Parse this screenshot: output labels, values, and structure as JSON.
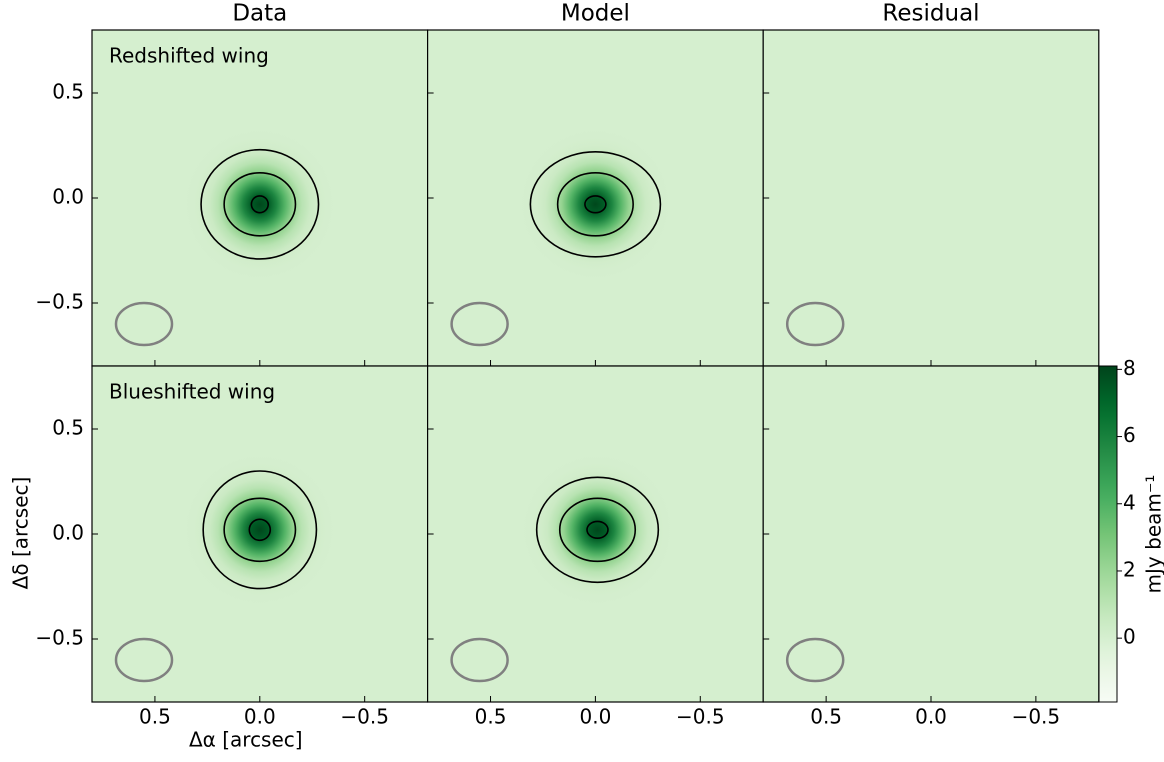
{
  "chart_data": {
    "type": "image-grid",
    "columns": [
      "Data",
      "Model",
      "Residual"
    ],
    "rows": [
      "Redshifted wing",
      "Blueshifted wing"
    ],
    "xlabel": "Δα [arcsec]",
    "ylabel": "Δδ [arcsec]",
    "xlim": [
      0.8,
      -0.8
    ],
    "ylim": [
      -0.8,
      0.8
    ],
    "xticks": [
      {
        "value": 0.5,
        "label": "0.5"
      },
      {
        "value": 0,
        "label": "0.0"
      },
      {
        "value": -0.5,
        "label": "−0.5"
      }
    ],
    "yticks": [
      {
        "value": 0.5,
        "label": "0.5"
      },
      {
        "value": 0,
        "label": "0.0"
      },
      {
        "value": -0.5,
        "label": "−0.5"
      }
    ],
    "colorbar": {
      "label": "mJy beam⁻¹",
      "clim": [
        -1.9,
        8.1
      ],
      "ticks": [
        0,
        2,
        4,
        6,
        8
      ],
      "colormap": "Greens"
    },
    "panels": [
      [
        {
          "peak": 8,
          "center": [
            0.0,
            -0.03
          ],
          "contours": [
            {
              "rx": 0.04,
              "ry": 0.04
            },
            {
              "rx": 0.17,
              "ry": 0.15
            },
            {
              "rx": 0.28,
              "ry": 0.26
            }
          ]
        },
        {
          "peak": 8,
          "center": [
            0.0,
            -0.03
          ],
          "contours": [
            {
              "rx": 0.05,
              "ry": 0.04
            },
            {
              "rx": 0.18,
              "ry": 0.15
            },
            {
              "rx": 0.31,
              "ry": 0.25
            }
          ]
        },
        {
          "peak": 0,
          "center": [
            0.0,
            0.0
          ],
          "contours": []
        }
      ],
      [
        {
          "peak": 8,
          "center": [
            0.0,
            0.02
          ],
          "contours": [
            {
              "rx": 0.05,
              "ry": 0.05
            },
            {
              "rx": 0.17,
              "ry": 0.15
            },
            {
              "rx": 0.27,
              "ry": 0.28
            }
          ]
        },
        {
          "peak": 8,
          "center": [
            -0.01,
            0.02
          ],
          "contours": [
            {
              "rx": 0.05,
              "ry": 0.04
            },
            {
              "rx": 0.18,
              "ry": 0.15
            },
            {
              "rx": 0.29,
              "ry": 0.25
            }
          ]
        },
        {
          "peak": 0,
          "center": [
            0.0,
            0.0
          ],
          "contours": []
        }
      ]
    ]
  }
}
